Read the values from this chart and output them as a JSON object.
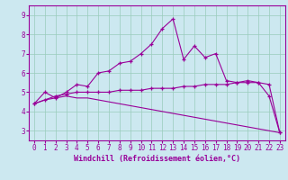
{
  "xlabel": "Windchill (Refroidissement éolien,°C)",
  "bg_color": "#cce8f0",
  "line_color": "#990099",
  "grid_color": "#99ccbb",
  "xlim": [
    -0.5,
    23.5
  ],
  "ylim": [
    2.5,
    9.5
  ],
  "xticks": [
    0,
    1,
    2,
    3,
    4,
    5,
    6,
    7,
    8,
    9,
    10,
    11,
    12,
    13,
    14,
    15,
    16,
    17,
    18,
    19,
    20,
    21,
    22,
    23
  ],
  "yticks": [
    3,
    4,
    5,
    6,
    7,
    8,
    9
  ],
  "line1_x": [
    0,
    1,
    2,
    3,
    4,
    5,
    6,
    7,
    8,
    9,
    10,
    11,
    12,
    13,
    14,
    15,
    16,
    17,
    18,
    19,
    20,
    21,
    22,
    23
  ],
  "line1_y": [
    4.4,
    5.0,
    4.7,
    5.0,
    5.4,
    5.3,
    6.0,
    6.1,
    6.5,
    6.6,
    7.0,
    7.5,
    8.3,
    8.8,
    6.7,
    7.4,
    6.8,
    7.0,
    5.6,
    5.5,
    5.6,
    5.5,
    4.8,
    2.9
  ],
  "line2_x": [
    0,
    1,
    2,
    3,
    4,
    5,
    6,
    7,
    8,
    9,
    10,
    11,
    12,
    13,
    14,
    15,
    16,
    17,
    18,
    19,
    20,
    21,
    22,
    23
  ],
  "line2_y": [
    4.4,
    4.6,
    4.8,
    4.9,
    5.0,
    5.0,
    5.0,
    5.0,
    5.1,
    5.1,
    5.1,
    5.2,
    5.2,
    5.2,
    5.3,
    5.3,
    5.4,
    5.4,
    5.4,
    5.5,
    5.5,
    5.5,
    5.4,
    2.9
  ],
  "line3_x": [
    0,
    1,
    2,
    3,
    4,
    5,
    6,
    7,
    8,
    9,
    10,
    11,
    12,
    13,
    14,
    15,
    16,
    17,
    18,
    19,
    20,
    21,
    22,
    23
  ],
  "line3_y": [
    4.4,
    4.6,
    4.7,
    4.8,
    4.7,
    4.7,
    4.6,
    4.5,
    4.4,
    4.3,
    4.2,
    4.1,
    4.0,
    3.9,
    3.8,
    3.7,
    3.6,
    3.5,
    3.4,
    3.3,
    3.2,
    3.1,
    3.0,
    2.9
  ],
  "tick_fontsize": 5.5,
  "xlabel_fontsize": 6.0
}
